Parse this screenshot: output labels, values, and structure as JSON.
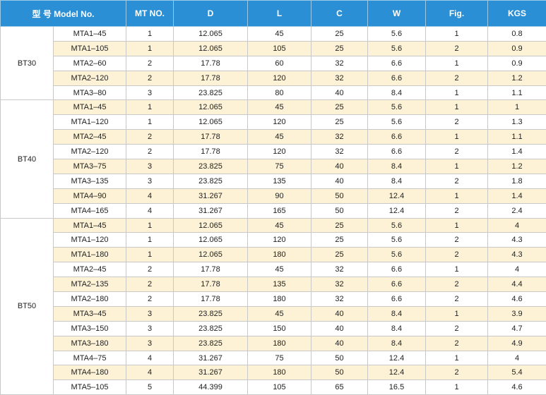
{
  "header": [
    "型 号 Model No.",
    "MT NO.",
    "D",
    "L",
    "C",
    "W",
    "Fig.",
    "KGS"
  ],
  "groups": [
    {
      "name": "BT30",
      "rows": [
        [
          "MTA1–45",
          1,
          12.065,
          45,
          25,
          5.6,
          1,
          0.8
        ],
        [
          "MTA1–105",
          1,
          12.065,
          105,
          25,
          5.6,
          2,
          0.9
        ],
        [
          "MTA2–60",
          2,
          17.78,
          60,
          32,
          6.6,
          1,
          0.9
        ],
        [
          "MTA2–120",
          2,
          17.78,
          120,
          32,
          6.6,
          2,
          1.2
        ],
        [
          "MTA3–80",
          3,
          23.825,
          80,
          40,
          8.4,
          1,
          1.1
        ]
      ]
    },
    {
      "name": "BT40",
      "rows": [
        [
          "MTA1–45",
          1,
          12.065,
          45,
          25,
          5.6,
          1,
          1
        ],
        [
          "MTA1–120",
          1,
          12.065,
          120,
          25,
          5.6,
          2,
          1.3
        ],
        [
          "MTA2–45",
          2,
          17.78,
          45,
          32,
          6.6,
          1,
          1.1
        ],
        [
          "MTA2–120",
          2,
          17.78,
          120,
          32,
          6.6,
          2,
          1.4
        ],
        [
          "MTA3–75",
          3,
          23.825,
          75,
          40,
          8.4,
          1,
          1.2
        ],
        [
          "MTA3–135",
          3,
          23.825,
          135,
          40,
          8.4,
          2,
          1.8
        ],
        [
          "MTA4–90",
          4,
          31.267,
          90,
          50,
          12.4,
          1,
          1.4
        ],
        [
          "MTA4–165",
          4,
          31.267,
          165,
          50,
          12.4,
          2,
          2.4
        ]
      ]
    },
    {
      "name": "BT50",
      "rows": [
        [
          "MTA1–45",
          1,
          12.065,
          45,
          25,
          5.6,
          1,
          4
        ],
        [
          "MTA1–120",
          1,
          12.065,
          120,
          25,
          5.6,
          2,
          4.3
        ],
        [
          "MTA1–180",
          1,
          12.065,
          180,
          25,
          5.6,
          2,
          4.3
        ],
        [
          "MTA2–45",
          2,
          17.78,
          45,
          32,
          6.6,
          1,
          4
        ],
        [
          "MTA2–135",
          2,
          17.78,
          135,
          32,
          6.6,
          2,
          4.4
        ],
        [
          "MTA2–180",
          2,
          17.78,
          180,
          32,
          6.6,
          2,
          4.6
        ],
        [
          "MTA3–45",
          3,
          23.825,
          45,
          40,
          8.4,
          1,
          3.9
        ],
        [
          "MTA3–150",
          3,
          23.825,
          150,
          40,
          8.4,
          2,
          4.7
        ],
        [
          "MTA3–180",
          3,
          23.825,
          180,
          40,
          8.4,
          2,
          4.9
        ],
        [
          "MTA4–75",
          4,
          31.267,
          75,
          50,
          12.4,
          1,
          4
        ],
        [
          "MTA4–180",
          4,
          31.267,
          180,
          50,
          12.4,
          2,
          5.4
        ],
        [
          "MTA5–105",
          5,
          44.399,
          105,
          65,
          16.5,
          1,
          4.6
        ]
      ]
    }
  ]
}
